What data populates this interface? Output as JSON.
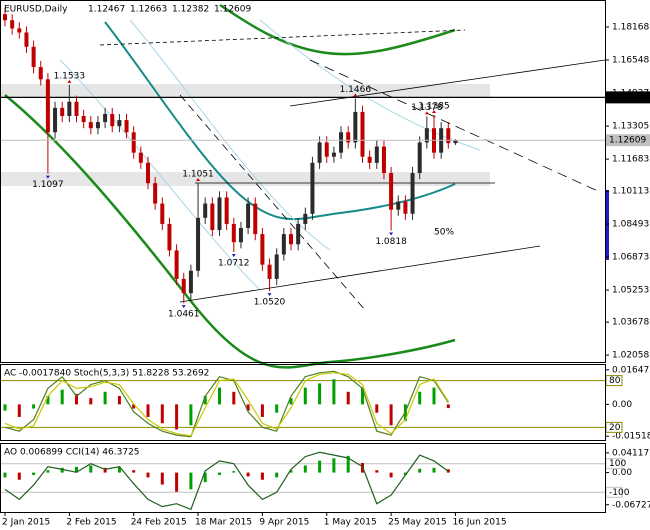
{
  "chart_data": [
    {
      "type": "candlestick",
      "title": "EURUSD,Daily",
      "categories": [
        "2 Jan 2015",
        null,
        null,
        null,
        null,
        null,
        null,
        null,
        null,
        "2 Feb 2015",
        null,
        null,
        null,
        null,
        null,
        null,
        null,
        null,
        "24 Feb 2015",
        null,
        null,
        null,
        null,
        null,
        null,
        null,
        null,
        "18 Mar 2015",
        null,
        null,
        null,
        null,
        null,
        null,
        null,
        null,
        "9 Apr 2015",
        null,
        null,
        null,
        null,
        null,
        null,
        null,
        null,
        "1 May 2015",
        null,
        null,
        null,
        null,
        null,
        null,
        null,
        null,
        "25 May 2015",
        null,
        null,
        null,
        null,
        null,
        null,
        null,
        null,
        "16 Jun 2015"
      ],
      "open": [
        1.188,
        1.185,
        1.181,
        1.179,
        1.172,
        1.162,
        1.156,
        1.13,
        1.142,
        1.138,
        1.145,
        1.138,
        1.135,
        1.132,
        1.135,
        1.139,
        1.133,
        1.136,
        1.13,
        1.12,
        1.115,
        1.105,
        1.095,
        1.085,
        1.072,
        1.058,
        1.051,
        1.062,
        1.088,
        1.095,
        1.082,
        1.098,
        1.085,
        1.076,
        1.083,
        1.095,
        1.08,
        1.065,
        1.058,
        1.07,
        1.08,
        1.075,
        1.085,
        1.09,
        1.115,
        1.125,
        1.118,
        1.12,
        1.13,
        1.125,
        1.14,
        1.118,
        1.115,
        1.123,
        1.11,
        1.092,
        1.096,
        1.09,
        1.11,
        1.125,
        1.132,
        1.12,
        1.132,
        1.12467
      ],
      "high": [
        1.191,
        1.188,
        1.184,
        1.182,
        1.175,
        1.165,
        1.159,
        1.145,
        1.145,
        1.1533,
        1.148,
        1.141,
        1.138,
        1.138,
        1.142,
        1.142,
        1.139,
        1.139,
        1.133,
        1.123,
        1.118,
        1.108,
        1.098,
        1.088,
        1.075,
        1.061,
        1.065,
        1.1051,
        1.098,
        1.098,
        1.101,
        1.101,
        1.088,
        1.086,
        1.098,
        1.098,
        1.083,
        1.068,
        1.073,
        1.083,
        1.083,
        1.088,
        1.093,
        1.118,
        1.128,
        1.128,
        1.123,
        1.133,
        1.133,
        1.1466,
        1.143,
        1.121,
        1.126,
        1.126,
        1.113,
        1.099,
        1.099,
        1.113,
        1.128,
        1.1378,
        1.1385,
        1.135,
        1.135,
        1.12663
      ],
      "low": [
        1.182,
        1.178,
        1.176,
        1.169,
        1.159,
        1.153,
        1.1097,
        1.127,
        1.135,
        1.135,
        1.135,
        1.132,
        1.129,
        1.129,
        1.132,
        1.13,
        1.13,
        1.127,
        1.117,
        1.112,
        1.102,
        1.092,
        1.082,
        1.069,
        1.055,
        1.0461,
        1.048,
        1.059,
        1.085,
        1.079,
        1.079,
        1.082,
        1.0712,
        1.073,
        1.08,
        1.077,
        1.062,
        1.052,
        1.055,
        1.067,
        1.072,
        1.072,
        1.082,
        1.087,
        1.112,
        1.115,
        1.115,
        1.117,
        1.122,
        1.122,
        1.115,
        1.112,
        1.112,
        1.107,
        1.0818,
        1.089,
        1.087,
        1.087,
        1.107,
        1.122,
        1.117,
        1.117,
        1.122,
        1.12382
      ],
      "close": [
        1.185,
        1.181,
        1.179,
        1.172,
        1.162,
        1.156,
        1.13,
        1.142,
        1.138,
        1.145,
        1.138,
        1.135,
        1.132,
        1.135,
        1.139,
        1.133,
        1.136,
        1.13,
        1.12,
        1.115,
        1.105,
        1.095,
        1.085,
        1.072,
        1.058,
        1.051,
        1.062,
        1.088,
        1.095,
        1.082,
        1.098,
        1.085,
        1.076,
        1.083,
        1.095,
        1.08,
        1.065,
        1.058,
        1.07,
        1.08,
        1.075,
        1.085,
        1.09,
        1.115,
        1.125,
        1.118,
        1.12,
        1.13,
        1.125,
        1.14,
        1.118,
        1.115,
        1.123,
        1.11,
        1.092,
        1.096,
        1.09,
        1.11,
        1.125,
        1.132,
        1.12,
        1.132,
        1.12467,
        1.12609
      ],
      "up_color": "#2b2b2b",
      "down_color": "#c00000",
      "ylim": [
        1.0172,
        1.1925
      ],
      "yticks": [
        1.18168,
        1.16548,
        1.14927,
        1.13305,
        1.11683,
        1.10113,
        1.08493,
        1.06873,
        1.05253,
        1.03678,
        1.02058
      ],
      "hlines": [
        {
          "value": 1.14714,
          "color": "#000000"
        }
      ],
      "annotations": [
        {
          "text": "1.1533",
          "x": 9,
          "position": "above"
        },
        {
          "text": "1.1097",
          "x": 6,
          "position": "below"
        },
        {
          "text": "1.1051",
          "x": 27,
          "position": "above"
        },
        {
          "text": "1.0712",
          "x": 32,
          "position": "below"
        },
        {
          "text": "1.0461",
          "x": 25,
          "position": "below"
        },
        {
          "text": "1.0520",
          "x": 37,
          "position": "below"
        },
        {
          "text": "1.1466",
          "x": 49,
          "position": "above"
        },
        {
          "text": "1.0818",
          "x": 54,
          "position": "below"
        },
        {
          "text": "1.1378",
          "x": 59,
          "position": "above"
        },
        {
          "text": "1.1385",
          "x": 60,
          "position": "above"
        }
      ],
      "channel_label": "50%"
    },
    {
      "type": "oscillator",
      "header": "AC -0.0017840  Stoch(5,3,3) 51.8228 53.2692",
      "x": [
        0,
        2,
        4,
        6,
        8,
        10,
        12,
        14,
        16,
        18,
        20,
        22,
        24,
        26,
        28,
        30,
        32,
        34,
        36,
        38,
        40,
        42,
        44,
        46,
        48,
        50,
        52,
        54,
        56,
        58,
        60,
        62
      ],
      "xlim": [
        0,
        63
      ],
      "values": [
        -0.003,
        -0.006,
        -0.002,
        0.004,
        0.007,
        0.005,
        0.003,
        0.006,
        0.004,
        -0.002,
        -0.006,
        -0.009,
        -0.012,
        -0.01,
        0.004,
        0.008,
        0.006,
        -0.003,
        -0.006,
        -0.004,
        0.003,
        0.008,
        0.01,
        0.012,
        0.006,
        0.008,
        -0.004,
        -0.01,
        -0.008,
        0.006,
        0.008,
        -0.001784
      ],
      "up_color": "#00a000",
      "down_color": "#c00000",
      "ylim": [
        -0.017,
        0.0183
      ],
      "yticks": [
        0.016473,
        {
          "value": 0,
          "label": "0.00"
        },
        -0.015182
      ],
      "series": [
        {
          "color": "#4f7f1f",
          "axis": "y2",
          "values": [
            20,
            15,
            30,
            70,
            85,
            60,
            75,
            80,
            70,
            40,
            25,
            15,
            10,
            8,
            60,
            85,
            80,
            40,
            20,
            15,
            60,
            85,
            90,
            92,
            85,
            70,
            15,
            10,
            40,
            85,
            80,
            51.8228
          ]
        },
        {
          "color": "#c8c800",
          "axis": "y2",
          "values": [
            25,
            18,
            22,
            60,
            80,
            70,
            72,
            78,
            75,
            50,
            30,
            18,
            12,
            9,
            45,
            80,
            82,
            55,
            25,
            18,
            45,
            80,
            88,
            90,
            88,
            75,
            25,
            12,
            30,
            75,
            82,
            53.2692
          ]
        }
      ],
      "y2lim": [
        3.75,
        98.75
      ],
      "y2ticks": [
        80,
        20
      ],
      "level_color": "#8b8b00"
    },
    {
      "type": "oscillator",
      "header": "AO 0.006899  CCI(14) 46.3725",
      "x": [
        0,
        2,
        4,
        6,
        8,
        10,
        12,
        14,
        16,
        18,
        20,
        22,
        24,
        26,
        28,
        30,
        32,
        34,
        36,
        38,
        40,
        42,
        44,
        46,
        48,
        50,
        52,
        54,
        56,
        58,
        60,
        62
      ],
      "xlim": [
        0,
        63
      ],
      "values": [
        -0.01,
        -0.015,
        -0.005,
        0.005,
        0.01,
        0.012,
        0.015,
        0.01,
        0.012,
        0.005,
        -0.01,
        -0.025,
        -0.04,
        -0.035,
        -0.02,
        -0.005,
        0.003,
        -0.008,
        -0.015,
        -0.01,
        0.005,
        0.015,
        0.025,
        0.03,
        0.035,
        0.02,
        0.005,
        -0.01,
        -0.005,
        0.008,
        0.01,
        0.006899
      ],
      "up_color": "#00a000",
      "down_color": "#c00000",
      "ylim": [
        -0.0824,
        0.0577
      ],
      "yticks": [
        0.041172,
        {
          "value": 0,
          "label": "0.00"
        },
        -0.06727
      ],
      "series": [
        {
          "color": "#1f5f1f",
          "axis": "y2",
          "values": [
            -80,
            -150,
            -50,
            80,
            60,
            40,
            100,
            60,
            80,
            -40,
            -150,
            -200,
            -180,
            -220,
            50,
            120,
            100,
            -50,
            -150,
            -100,
            60,
            150,
            180,
            160,
            140,
            80,
            -180,
            -120,
            20,
            160,
            120,
            46.3725
          ]
        }
      ],
      "y2lim": [
        -238,
        231
      ],
      "y2ticks": [
        100,
        -100
      ],
      "level_color": "#c0c0c0"
    }
  ]
}
